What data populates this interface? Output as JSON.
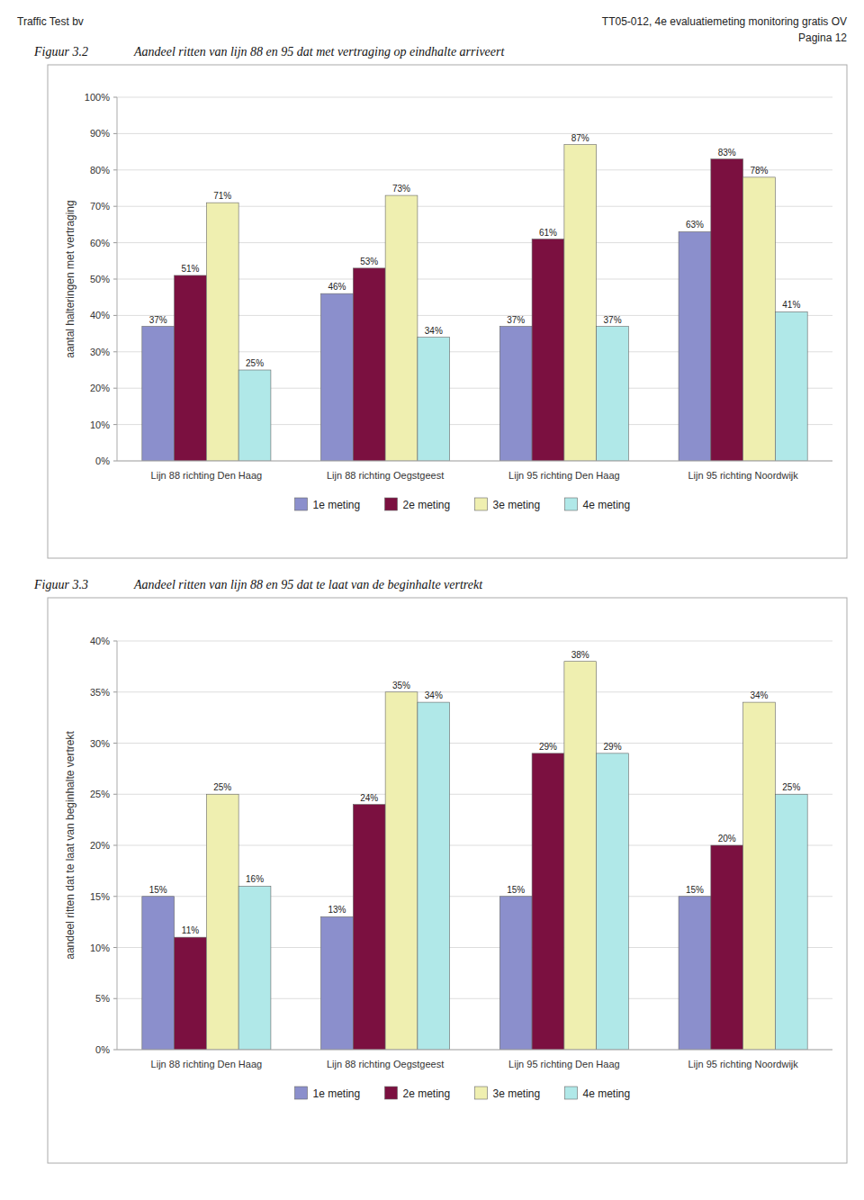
{
  "chart_data": [
    {
      "type": "bar",
      "annotations": [
        "Traffic Test bv",
        "TT05-012, 4e evaluatiemeting monitoring gratis OV",
        "Pagina 12"
      ],
      "title": "Figuur 3.2",
      "subtitle": "Aandeel ritten van lijn 88 en 95 dat met vertraging op eindhalte arriveert",
      "ylabel": "aantal halteringen met vertraging",
      "categories": [
        "Lijn 88 richting Den Haag",
        "Lijn 88 richting Oegstgeest",
        "Lijn 95 richting Den Haag",
        "Lijn 95 richting Noordwijk"
      ],
      "series": [
        {
          "name": "1e meting",
          "color": "#8B8FCC",
          "values": [
            0.37,
            0.46,
            0.37,
            0.63
          ],
          "value_labels": [
            "37%",
            "46%",
            "37%",
            "63%"
          ]
        },
        {
          "name": "2e meting",
          "color": "#7B1040",
          "values": [
            0.51,
            0.53,
            0.61,
            0.83
          ],
          "value_labels": [
            "51%",
            "53%",
            "61%",
            "83%"
          ]
        },
        {
          "name": "3e meting",
          "color": "#EFEFB0",
          "values": [
            0.71,
            0.73,
            0.87,
            0.78
          ],
          "value_labels": [
            "71%",
            "73%",
            "87%",
            "78%"
          ]
        },
        {
          "name": "4e meting",
          "color": "#B0E8E8",
          "values": [
            0.25,
            0.34,
            0.37,
            0.41
          ],
          "value_labels": [
            "25%",
            "34%",
            "37%",
            "41%"
          ]
        }
      ],
      "ylim": [
        0,
        1.0
      ],
      "yticks": [
        {
          "value": 0.0,
          "label": "0%"
        },
        {
          "value": 0.1,
          "label": "10%"
        },
        {
          "value": 0.2,
          "label": "20%"
        },
        {
          "value": 0.3,
          "label": "30%"
        },
        {
          "value": 0.4,
          "label": "40%"
        },
        {
          "value": 0.5,
          "label": "50%"
        },
        {
          "value": 0.6,
          "label": "60%"
        },
        {
          "value": 0.7,
          "label": "70%"
        },
        {
          "value": 0.8,
          "label": "80%"
        },
        {
          "value": 0.9,
          "label": "90%"
        },
        {
          "value": 1.0,
          "label": "100%"
        }
      ],
      "grid": true,
      "legend": "bottom",
      "data_labels": true
    },
    {
      "type": "bar",
      "title": "Figuur 3.3",
      "subtitle": "Aandeel ritten van lijn 88 en 95 dat te laat van de beginhalte vertrekt",
      "ylabel": "aandeel ritten dat te laat van beginhalte vertrekt",
      "categories": [
        "Lijn 88 richting Den Haag",
        "Lijn 88 richting Oegstgeest",
        "Lijn 95 richting Den Haag",
        "Lijn 95 richting Noordwijk"
      ],
      "series": [
        {
          "name": "1e meting",
          "color": "#8B8FCC",
          "values": [
            0.15,
            0.13,
            0.15,
            0.15
          ],
          "value_labels": [
            "15%",
            "13%",
            "15%",
            "15%"
          ]
        },
        {
          "name": "2e meting",
          "color": "#7B1040",
          "values": [
            0.11,
            0.24,
            0.29,
            0.2
          ],
          "value_labels": [
            "11%",
            "24%",
            "29%",
            "20%"
          ]
        },
        {
          "name": "3e meting",
          "color": "#EFEFB0",
          "values": [
            0.25,
            0.35,
            0.38,
            0.34
          ],
          "value_labels": [
            "25%",
            "35%",
            "38%",
            "34%"
          ]
        },
        {
          "name": "4e meting",
          "color": "#B0E8E8",
          "values": [
            0.16,
            0.34,
            0.29,
            0.25
          ],
          "value_labels": [
            "16%",
            "34%",
            "29%",
            "25%"
          ]
        }
      ],
      "ylim": [
        0,
        0.4
      ],
      "yticks": [
        {
          "value": 0.0,
          "label": "0%"
        },
        {
          "value": 0.05,
          "label": "5%"
        },
        {
          "value": 0.1,
          "label": "10%"
        },
        {
          "value": 0.15,
          "label": "15%"
        },
        {
          "value": 0.2,
          "label": "20%"
        },
        {
          "value": 0.25,
          "label": "25%"
        },
        {
          "value": 0.3,
          "label": "30%"
        },
        {
          "value": 0.35,
          "label": "35%"
        },
        {
          "value": 0.4,
          "label": "40%"
        }
      ],
      "grid": true,
      "legend": "bottom",
      "data_labels": true
    }
  ]
}
